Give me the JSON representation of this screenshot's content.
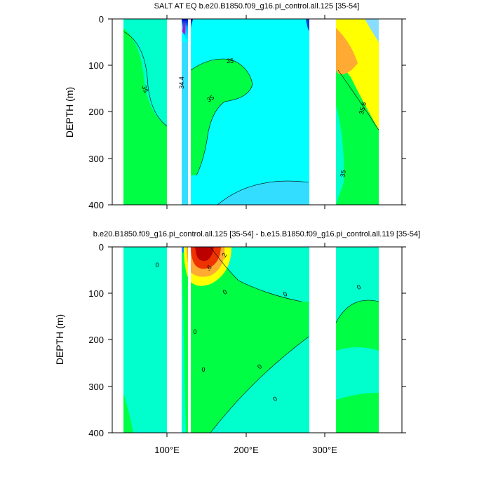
{
  "chart_data": [
    {
      "type": "heatmap",
      "title": "SALT AT EQ b.e20.B1850.f09_g16.pi_control.all.125 [35-54]",
      "ylabel": "DEPTH (m)",
      "xlabel": "",
      "ylim": [
        400,
        0
      ],
      "xlim": [
        30,
        390
      ],
      "yticks": [
        "0",
        "100",
        "200",
        "300",
        "400"
      ],
      "xticks": [
        100,
        200,
        300
      ],
      "contour_labels": [
        "35",
        "35",
        "34.4",
        "35",
        "35.6",
        "35"
      ],
      "land_gaps_lon": [
        [
          98,
          118
        ],
        [
          130,
          133
        ],
        [
          278,
          314
        ]
      ],
      "field": [
        {
          "lon": [
            45,
            98
          ],
          "depth": [
            0,
            400
          ],
          "value": "~35.0",
          "color": "#00ffcc"
        },
        {
          "lon": [
            45,
            98
          ],
          "depth": [
            0,
            400
          ],
          "region": "western interior",
          "value": "<35",
          "color": "#00ff44"
        },
        {
          "lon": [
            118,
            135
          ],
          "depth": [
            0,
            50
          ],
          "region": "surface fresh core",
          "value": "<34.4",
          "color": "#0030ff"
        },
        {
          "lon": [
            133,
            278
          ],
          "depth": [
            0,
            400
          ],
          "value": "~34.9",
          "color": "#00ffff"
        },
        {
          "lon": [
            150,
            190
          ],
          "depth": [
            60,
            200
          ],
          "region": "subsurface high",
          "value": ">35",
          "color": "#00ff44"
        },
        {
          "lon": [
            314,
            370
          ],
          "depth": [
            0,
            220
          ],
          "region": "atlantic high",
          "value": ">35.6",
          "color": "#ffff00"
        },
        {
          "lon": [
            314,
            340
          ],
          "depth": [
            40,
            120
          ],
          "region": "atlantic max",
          "value": ">36",
          "color": "#ffaa33"
        }
      ]
    },
    {
      "type": "heatmap",
      "title": "b.e20.B1850.f09_g16.pi_control.all.125 [35-54] - b.e15.B1850.f09_g16.pi_control.all.119 [35-54]",
      "ylabel": "DEPTH (m)",
      "xlabel": "",
      "ylim": [
        400,
        0
      ],
      "xlim": [
        30,
        390
      ],
      "yticks": [
        "0",
        "100",
        "200",
        "300",
        "400"
      ],
      "xticks": [
        100,
        200,
        300
      ],
      "xtick_labels": [
        "100°E",
        "200°E",
        "300°E"
      ],
      "contour_labels": [
        "0",
        ".2",
        ".6",
        "0",
        "0",
        "0",
        "0",
        "0",
        "0",
        "0"
      ],
      "land_gaps_lon": [
        [
          98,
          118
        ],
        [
          130,
          133
        ],
        [
          278,
          314
        ]
      ],
      "field": [
        {
          "lon": [
            45,
            98
          ],
          "depth": [
            0,
            400
          ],
          "value": "~0",
          "color": "#00ffcc"
        },
        {
          "lon": [
            118,
            278
          ],
          "depth": [
            0,
            400
          ],
          "region": "positive wedge",
          "value": ">0",
          "color": "#00ff44"
        },
        {
          "lon": [
            128,
            160
          ],
          "depth": [
            0,
            60
          ],
          "region": "surface max",
          "value": ">1",
          "color": "#cc0000"
        },
        {
          "lon": [
            314,
            370
          ],
          "depth": [
            0,
            400
          ],
          "value": "~0",
          "color": "#00ffcc"
        }
      ]
    }
  ]
}
